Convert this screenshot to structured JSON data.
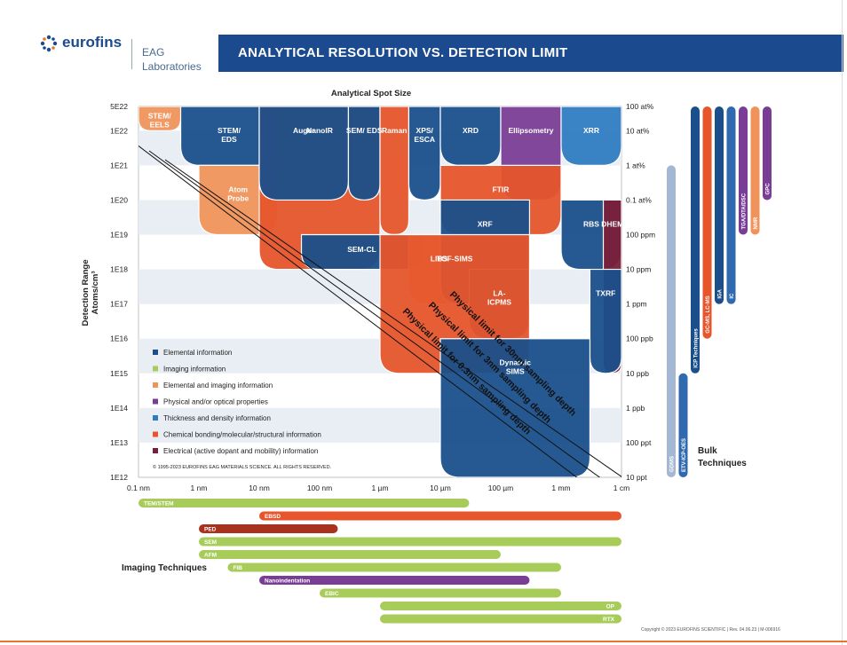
{
  "header": {
    "brand": "eurofins",
    "lab_line1": "EAG",
    "lab_line2": "Laboratories",
    "title": "ANALYTICAL RESOLUTION VS. DETECTION LIMIT"
  },
  "colors": {
    "elemental": "#1a4f8b",
    "imaging": "#a8cc5a",
    "elemental_imaging": "#f0935a",
    "physical_optical": "#7a3d96",
    "thickness_density": "#2f7cc2",
    "chemical": "#e6552b",
    "electrical": "#7a1f3a",
    "brand_blue": "#1b4a8f",
    "accent_orange": "#e8772e"
  },
  "chart_data": {
    "type": "area",
    "title": "Analytical Spot Size",
    "xlabel": "",
    "ylabel": "Detection Range Atoms/cm³",
    "x_ticks": [
      "0.1 nm",
      "1 nm",
      "10 nm",
      "100 nm",
      "1 µm",
      "10 µm",
      "100 µm",
      "1 mm",
      "1 cm"
    ],
    "y_ticks_left": [
      "5E22",
      "1E22",
      "1E21",
      "1E20",
      "1E19",
      "1E18",
      "1E17",
      "1E16",
      "1E15",
      "1E14",
      "1E13",
      "1E12"
    ],
    "y_ticks_right": [
      "100 at%",
      "10 at%",
      "1 at%",
      "0.1 at%",
      "100 ppm",
      "10 ppm",
      "1 ppm",
      "100 ppb",
      "10 ppb",
      "1 ppb",
      "100 ppt",
      "10 ppt"
    ],
    "grid": true,
    "techniques": [
      {
        "name": "STEM/ EELS",
        "category": "elemental_imaging",
        "x": [
          0.1,
          0.5
        ],
        "y": [
          1e+22,
          5e+22
        ]
      },
      {
        "name": "STEM/ EDS",
        "category": "elemental",
        "x": [
          0.5,
          20
        ],
        "y": [
          1e+21,
          5e+22
        ]
      },
      {
        "name": "Atom Probe",
        "category": "elemental_imaging",
        "x": [
          1,
          20
        ],
        "y": [
          1e+19,
          1e+21
        ]
      },
      {
        "name": "NanoIR",
        "category": "chemical",
        "x": [
          10,
          1000
        ],
        "y": [
          1e+18,
          5e+22
        ]
      },
      {
        "name": "Auger",
        "category": "elemental",
        "x": [
          10,
          300
        ],
        "y": [
          1e+20,
          5e+22
        ]
      },
      {
        "name": "SEM/ EDS",
        "category": "elemental",
        "x": [
          300,
          1000
        ],
        "y": [
          1e+20,
          5e+22
        ]
      },
      {
        "name": "Raman",
        "category": "chemical",
        "x": [
          1000,
          3000
        ],
        "y": [
          1e+19,
          5e+22
        ]
      },
      {
        "name": "XPS/ ESCA",
        "category": "elemental",
        "x": [
          3000,
          10000
        ],
        "y": [
          1e+20,
          5e+22
        ]
      },
      {
        "name": "XRD",
        "category": "elemental",
        "x": [
          10000,
          100000
        ],
        "y": [
          1e+21,
          5e+22
        ]
      },
      {
        "name": "Ellipsometry",
        "category": "physical_optical",
        "x": [
          100000,
          1000000
        ],
        "y": [
          1e+20,
          5e+22
        ]
      },
      {
        "name": "XRR",
        "category": "thickness_density",
        "x": [
          1000000,
          10000000
        ],
        "y": [
          1e+21,
          5e+22
        ]
      },
      {
        "name": "FTIR",
        "category": "chemical",
        "x": [
          10000,
          1000000
        ],
        "y": [
          1e+19,
          1e+21
        ]
      },
      {
        "name": "SEM-CL",
        "category": "elemental",
        "x": [
          50,
          5000
        ],
        "y": [
          1e+18,
          1e+19
        ]
      },
      {
        "name": "LIBS",
        "category": "elemental_imaging",
        "x": [
          3000,
          30000
        ],
        "y": [
          1e+17,
          1e+19
        ]
      },
      {
        "name": "XRF",
        "category": "elemental",
        "x": [
          10000,
          300000
        ],
        "y": [
          1e+17,
          1e+20
        ]
      },
      {
        "name": "RBS",
        "category": "elemental",
        "x": [
          1000000,
          10000000
        ],
        "y": [
          1e+18,
          1e+20
        ]
      },
      {
        "name": "DHEM",
        "category": "electrical",
        "x": [
          5000000,
          10000000
        ],
        "y": [
          1000000000000000.0,
          1e+20
        ]
      },
      {
        "name": "TXRF",
        "category": "elemental",
        "x": [
          3000000,
          10000000
        ],
        "y": [
          1000000000000000.0,
          1e+18
        ]
      },
      {
        "name": "LA- ICPMS",
        "category": "elemental",
        "x": [
          30000,
          300000
        ],
        "y": [
          1e+16,
          1e+18
        ]
      },
      {
        "name": "TOF-SIMS",
        "category": "chemical",
        "x": [
          1000,
          300000
        ],
        "y": [
          1000000000000000.0,
          1e+19
        ]
      },
      {
        "name": "Dynamic SIMS",
        "category": "elemental",
        "x": [
          10000,
          3000000
        ],
        "y": [
          1000000000000.0,
          1e+16
        ]
      }
    ],
    "diagonal_limits": [
      "Physical limit for 0.3nm sampling depth",
      "Physical limit for 3nm sampling depth",
      "Physical limit for 30nm sampling depth"
    ],
    "legend": [
      {
        "label": "Elemental information",
        "color": "#1a4f8b"
      },
      {
        "label": "Imaging information",
        "color": "#a8cc5a"
      },
      {
        "label": "Elemental and imaging information",
        "color": "#f0935a"
      },
      {
        "label": "Physical and/or optical properties",
        "color": "#7a3d96"
      },
      {
        "label": "Thickness and density information",
        "color": "#2f7cc2"
      },
      {
        "label": "Chemical bonding/molecular/structural information",
        "color": "#e6552b"
      },
      {
        "label": "Electrical (active dopant and mobility) information",
        "color": "#7a1f3a"
      }
    ],
    "legend_copyright": "© 1995-2023 EUROFINS EAG MATERIALS SCIENCE. ALL RIGHTS RESERVED.",
    "bulk_title": "Bulk Techniques",
    "bulk": [
      {
        "name": "GDMS",
        "color": "#a4b8d4",
        "from": "1E21",
        "to": "1E12"
      },
      {
        "name": "ETV-ICP-OES",
        "color": "#2f6ab0",
        "from": "1E15",
        "to": "1E12"
      },
      {
        "name": "ICP Techniques",
        "color": "#1a4f8b",
        "from": "5E22",
        "to": "1E15"
      },
      {
        "name": "GC-MS, LC-MS",
        "color": "#e6552b",
        "from": "5E22",
        "to": "1E16"
      },
      {
        "name": "IGA",
        "color": "#1a4f8b",
        "from": "5E22",
        "to": "1E17"
      },
      {
        "name": "IC",
        "color": "#2f6ab0",
        "from": "5E22",
        "to": "1E17"
      },
      {
        "name": "TGA/DTA/DSC",
        "color": "#7a3d96",
        "from": "5E22",
        "to": "1E19"
      },
      {
        "name": "NMR",
        "color": "#f0935a",
        "from": "5E22",
        "to": "1E19"
      },
      {
        "name": "GPC",
        "color": "#7a3d96",
        "from": "5E22",
        "to": "1E20"
      }
    ],
    "imaging_title": "Imaging Techniques",
    "imaging": [
      {
        "name": "TEM/STEM",
        "color": "#a8cc5a",
        "from": 0.1,
        "to": 30000
      },
      {
        "name": "EBSD",
        "color": "#e6552b",
        "from": 10,
        "to": 10000000
      },
      {
        "name": "PED",
        "color": "#a8321c",
        "from": 1,
        "to": 200
      },
      {
        "name": "SEM",
        "color": "#a8cc5a",
        "from": 1,
        "to": 10000000
      },
      {
        "name": "AFM",
        "color": "#a8cc5a",
        "from": 1,
        "to": 100000
      },
      {
        "name": "FIB",
        "color": "#a8cc5a",
        "from": 3,
        "to": 1000000
      },
      {
        "name": "Nanoindentation",
        "color": "#7a3d96",
        "from": 10,
        "to": 300000
      },
      {
        "name": "EBIC",
        "color": "#a8cc5a",
        "from": 100,
        "to": 1000000
      },
      {
        "name": "OP",
        "color": "#a8cc5a",
        "from": 1000,
        "to": 10000000
      },
      {
        "name": "RTX",
        "color": "#a8cc5a",
        "from": 1000,
        "to": 10000000
      }
    ]
  },
  "footer": {
    "copyright": "Copyright © 2023 EUROFINS SCIENTIFIC | Rev. 04.06.23 | M-006916"
  }
}
